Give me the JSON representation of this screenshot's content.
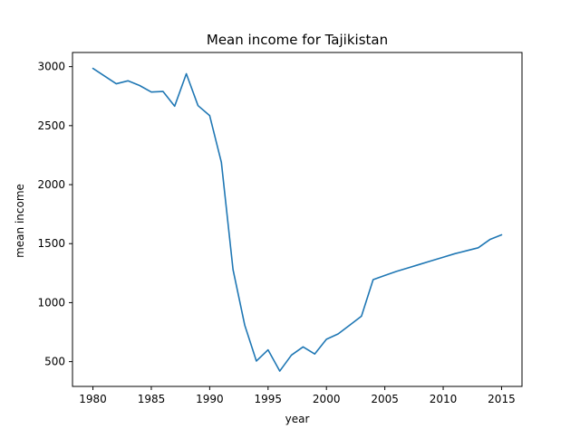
{
  "chart_data": {
    "type": "line",
    "title": "Mean income for Tajikistan",
    "xlabel": "year",
    "ylabel": "mean income",
    "xlim": [
      1978.25,
      2016.75
    ],
    "ylim": [
      290,
      3120
    ],
    "grid": false,
    "x_ticks": [
      1980,
      1985,
      1990,
      1995,
      2000,
      2005,
      2010,
      2015
    ],
    "x_tick_labels": [
      "1980",
      "1985",
      "1990",
      "1995",
      "2000",
      "2005",
      "2010",
      "2015"
    ],
    "y_ticks": [
      500,
      1000,
      1500,
      2000,
      2500,
      3000
    ],
    "y_tick_labels": [
      "500",
      "1000",
      "1500",
      "2000",
      "2500",
      "3000"
    ],
    "line_color": "#1f77b4",
    "series": [
      {
        "x": [
          1980,
          1981,
          1982,
          1983,
          1984,
          1985,
          1986,
          1987,
          1988,
          1989,
          1990,
          1991,
          1992,
          1993,
          1994,
          1995,
          1996,
          1997,
          1998,
          1999,
          2000,
          2001,
          2002,
          2003,
          2004,
          2005,
          2006,
          2007,
          2008,
          2009,
          2010,
          2011,
          2012,
          2013,
          2014,
          2015
        ],
        "y": [
          2985,
          2920,
          2855,
          2880,
          2840,
          2785,
          2790,
          2665,
          2940,
          2670,
          2585,
          2190,
          1280,
          810,
          505,
          600,
          420,
          555,
          625,
          565,
          690,
          735,
          810,
          885,
          1195,
          1230,
          1265,
          1295,
          1325,
          1355,
          1385,
          1415,
          1440,
          1465,
          1535,
          1575
        ]
      }
    ]
  }
}
